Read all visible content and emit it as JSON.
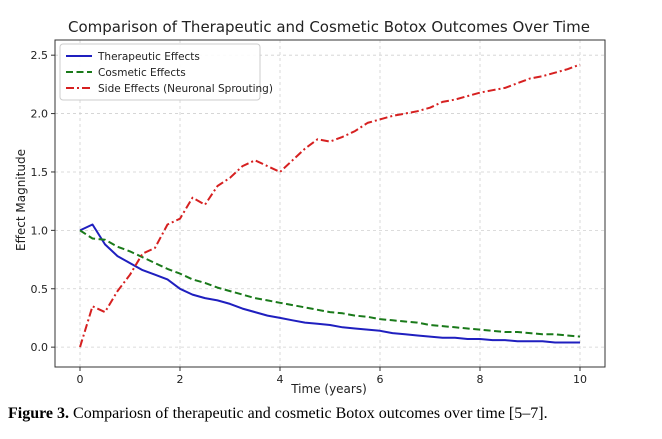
{
  "chart_data": {
    "type": "line",
    "title": "Comparison of Therapeutic and Cosmetic Botox Outcomes Over Time",
    "xlabel": "Time (years)",
    "ylabel": "Effect Magnitude",
    "xlim": [
      -0.5,
      10.5
    ],
    "ylim": [
      -0.17,
      2.63
    ],
    "x_ticks": [
      0,
      2,
      4,
      6,
      8,
      10
    ],
    "y_ticks": [
      0.0,
      0.5,
      1.0,
      1.5,
      2.0,
      2.5
    ],
    "x_tick_labels": [
      "0",
      "2",
      "4",
      "6",
      "8",
      "10"
    ],
    "y_tick_labels": [
      "0.0",
      "0.5",
      "1.0",
      "1.5",
      "2.0",
      "2.5"
    ],
    "grid": true,
    "legend_position": "top-left",
    "x": [
      0,
      0.25,
      0.5,
      0.75,
      1,
      1.25,
      1.5,
      1.75,
      2,
      2.25,
      2.5,
      2.75,
      3,
      3.25,
      3.5,
      3.75,
      4,
      4.25,
      4.5,
      4.75,
      5,
      5.25,
      5.5,
      5.75,
      6,
      6.25,
      6.5,
      6.75,
      7,
      7.25,
      7.5,
      7.75,
      8,
      8.25,
      8.5,
      8.75,
      9,
      9.25,
      9.5,
      9.75,
      10
    ],
    "series": [
      {
        "name": "Therapeutic Effects",
        "color": "#1f1fbf",
        "dash": "solid",
        "values": [
          1.0,
          1.05,
          0.88,
          0.78,
          0.72,
          0.66,
          0.62,
          0.58,
          0.5,
          0.45,
          0.42,
          0.4,
          0.37,
          0.33,
          0.3,
          0.27,
          0.25,
          0.23,
          0.21,
          0.2,
          0.19,
          0.17,
          0.16,
          0.15,
          0.14,
          0.12,
          0.11,
          0.1,
          0.09,
          0.08,
          0.08,
          0.07,
          0.07,
          0.06,
          0.06,
          0.05,
          0.05,
          0.05,
          0.04,
          0.04,
          0.04
        ]
      },
      {
        "name": "Cosmetic Effects",
        "color": "#1a7a1a",
        "dash": "dashed",
        "values": [
          1.0,
          0.93,
          0.92,
          0.86,
          0.82,
          0.77,
          0.72,
          0.67,
          0.63,
          0.58,
          0.55,
          0.51,
          0.48,
          0.45,
          0.42,
          0.4,
          0.38,
          0.36,
          0.34,
          0.32,
          0.3,
          0.29,
          0.27,
          0.26,
          0.24,
          0.23,
          0.22,
          0.21,
          0.19,
          0.18,
          0.17,
          0.16,
          0.15,
          0.14,
          0.13,
          0.13,
          0.12,
          0.11,
          0.11,
          0.1,
          0.09
        ]
      },
      {
        "name": "Side Effects (Neuronal Sprouting)",
        "color": "#d62020",
        "dash": "dashdot",
        "values": [
          0.0,
          0.35,
          0.3,
          0.48,
          0.62,
          0.8,
          0.85,
          1.05,
          1.1,
          1.28,
          1.22,
          1.38,
          1.45,
          1.55,
          1.6,
          1.55,
          1.5,
          1.6,
          1.7,
          1.78,
          1.76,
          1.8,
          1.85,
          1.92,
          1.95,
          1.98,
          2.0,
          2.02,
          2.05,
          2.1,
          2.12,
          2.15,
          2.18,
          2.2,
          2.22,
          2.26,
          2.3,
          2.32,
          2.35,
          2.38,
          2.42
        ]
      }
    ]
  },
  "caption": {
    "label": "Figure 3.",
    "text": " Compariosn of therapeutic and cosmetic Botox outcomes over time [5–7]."
  }
}
